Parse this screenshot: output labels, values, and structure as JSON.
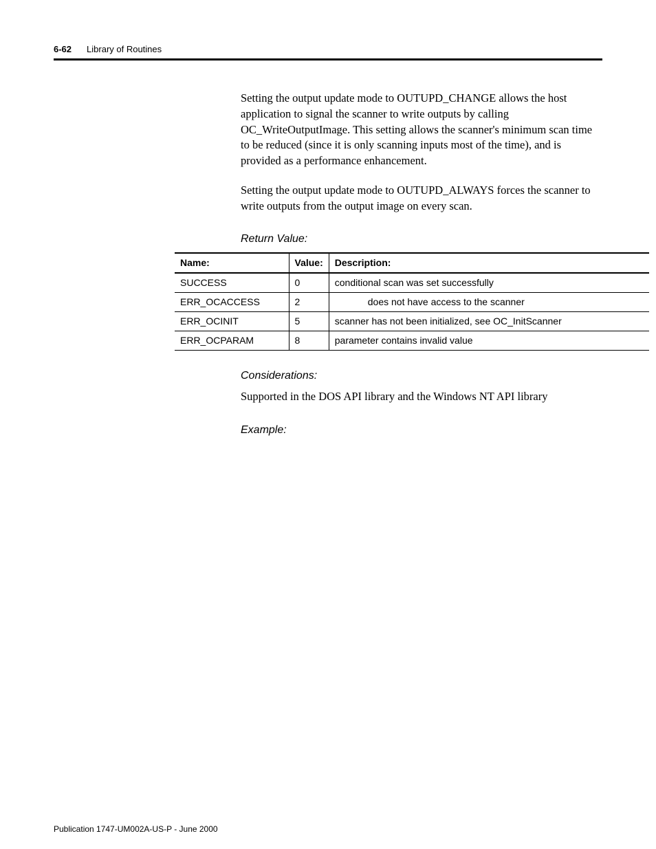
{
  "header": {
    "page_number": "6-62",
    "section_title": "Library of Routines"
  },
  "body": {
    "para1": "Setting the output update mode to OUTUPD_CHANGE allows the host application to signal the scanner to write outputs by calling OC_WriteOutputImage. This setting allows the scanner's minimum scan time to be reduced (since it is only scanning inputs most of the time), and is provided as a performance enhancement.",
    "para2": "Setting the output update mode to OUTUPD_ALWAYS forces the scanner to write outputs from the output image on every scan."
  },
  "return_value": {
    "heading": "Return Value:",
    "columns": {
      "name": "Name:",
      "value": "Value:",
      "description": "Description:"
    },
    "rows": [
      {
        "name": "SUCCESS",
        "value": "0",
        "description": "conditional scan was set successfully",
        "indent": false
      },
      {
        "name": "ERR_OCACCESS",
        "value": "2",
        "description": "does not have access to the scanner",
        "indent": true
      },
      {
        "name": "ERR_OCINIT",
        "value": "5",
        "description": "scanner has not been initialized, see OC_InitScanner",
        "indent": false
      },
      {
        "name": "ERR_OCPARAM",
        "value": "8",
        "description": "parameter contains invalid value",
        "indent": false
      }
    ]
  },
  "considerations": {
    "heading": "Considerations:",
    "text": "Supported in the DOS API library and the Windows NT API library"
  },
  "example": {
    "heading": "Example:"
  },
  "footer": {
    "text": "Publication 1747-UM002A-US-P - June 2000"
  }
}
